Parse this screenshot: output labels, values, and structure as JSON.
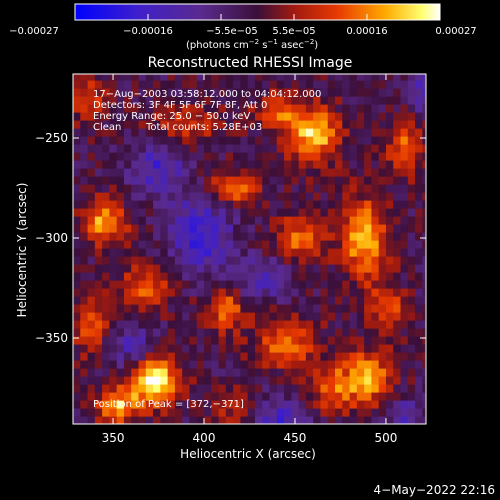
{
  "chart_data": {
    "type": "heatmap",
    "title": "Reconstructed RHESSI Image",
    "xlabel": "Heliocentric X (arcsec)",
    "ylabel": "Heliocentric Y (arcsec)",
    "xlim": [
      328,
      522
    ],
    "ylim": [
      -393,
      -218
    ],
    "xticks": [
      350,
      400,
      450,
      500
    ],
    "yticks": [
      -250,
      -300,
      -350
    ],
    "xtick_labels": [
      "350",
      "400",
      "450",
      "500"
    ],
    "ytick_labels": [
      "−250",
      "−300",
      "−350"
    ],
    "colorbar": {
      "range": [
        -0.00027,
        0.00027
      ],
      "tick_labels": [
        "−0.00027",
        "−0.00016",
        "−5.5e−05",
        "5.5e−05",
        "0.00016",
        "0.00027"
      ],
      "unit_main": "(photons cm",
      "unit_s": "s",
      "unit_asec": "asec",
      "unit_exp": "−2",
      "unit_exp2": "−1",
      "unit_exp3": "−2",
      "unit_close": ")"
    },
    "annotations": {
      "line1": "17−Aug−2003 03:58:12.000 to 04:04:12.000",
      "line2": "Detectors: 3F 4F 5F 6F 7F 8F, Att 0",
      "line3": "Energy Range: 25.0 − 50.0 keV",
      "line4a": "Clean",
      "line4b": "Total counts: 5.28E+03",
      "peak": "Position of Peak = [372,−371]"
    },
    "peak": {
      "x": 372,
      "y": -371
    },
    "blobs": [
      {
        "x": 372,
        "y": -371,
        "amp": 1.0,
        "sx": 10,
        "sy": 9
      },
      {
        "x": 352,
        "y": -384,
        "amp": 0.75,
        "sx": 8,
        "sy": 6
      },
      {
        "x": 345,
        "y": -292,
        "amp": 0.7,
        "sx": 9,
        "sy": 8
      },
      {
        "x": 460,
        "y": -248,
        "amp": 0.85,
        "sx": 10,
        "sy": 10
      },
      {
        "x": 440,
        "y": -236,
        "amp": 0.55,
        "sx": 8,
        "sy": 6
      },
      {
        "x": 488,
        "y": -300,
        "amp": 0.8,
        "sx": 9,
        "sy": 14
      },
      {
        "x": 452,
        "y": -300,
        "amp": 0.55,
        "sx": 10,
        "sy": 8
      },
      {
        "x": 415,
        "y": -275,
        "amp": 0.6,
        "sx": 10,
        "sy": 6
      },
      {
        "x": 390,
        "y": -242,
        "amp": 0.45,
        "sx": 14,
        "sy": 6
      },
      {
        "x": 368,
        "y": -325,
        "amp": 0.55,
        "sx": 10,
        "sy": 8
      },
      {
        "x": 412,
        "y": -335,
        "amp": 0.6,
        "sx": 8,
        "sy": 8
      },
      {
        "x": 445,
        "y": -352,
        "amp": 0.6,
        "sx": 12,
        "sy": 9
      },
      {
        "x": 490,
        "y": -370,
        "amp": 0.7,
        "sx": 10,
        "sy": 10
      },
      {
        "x": 470,
        "y": -375,
        "amp": 0.55,
        "sx": 8,
        "sy": 8
      },
      {
        "x": 510,
        "y": -255,
        "amp": 0.55,
        "sx": 7,
        "sy": 10
      },
      {
        "x": 335,
        "y": -230,
        "amp": 0.45,
        "sx": 8,
        "sy": 8
      },
      {
        "x": 420,
        "y": -385,
        "amp": 0.4,
        "sx": 10,
        "sy": 6
      },
      {
        "x": 338,
        "y": -345,
        "amp": 0.5,
        "sx": 7,
        "sy": 10
      },
      {
        "x": 500,
        "y": -335,
        "amp": 0.5,
        "sx": 8,
        "sy": 8
      },
      {
        "x": 398,
        "y": -298,
        "amp": -0.6,
        "sx": 12,
        "sy": 14
      },
      {
        "x": 375,
        "y": -265,
        "amp": -0.5,
        "sx": 10,
        "sy": 10
      },
      {
        "x": 440,
        "y": -390,
        "amp": -0.55,
        "sx": 10,
        "sy": 8
      },
      {
        "x": 360,
        "y": -355,
        "amp": -0.45,
        "sx": 10,
        "sy": 8
      },
      {
        "x": 430,
        "y": -320,
        "amp": -0.4,
        "sx": 12,
        "sy": 8
      },
      {
        "x": 510,
        "y": -390,
        "amp": -0.4,
        "sx": 8,
        "sy": 8
      },
      {
        "x": 520,
        "y": -225,
        "amp": -0.45,
        "sx": 6,
        "sy": 8
      }
    ]
  },
  "footer": {
    "timestamp": "4−May−2022 22:16"
  },
  "colors": {
    "background": "#000000",
    "axis": "#ffffff"
  }
}
